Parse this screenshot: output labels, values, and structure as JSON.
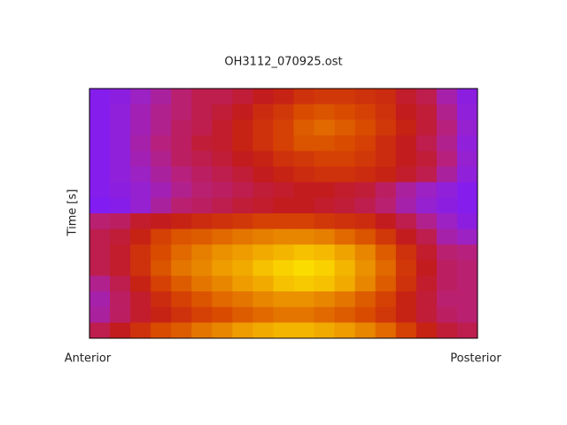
{
  "chart_data": {
    "type": "heatmap",
    "title": "OH3112_070925.ost",
    "ylabel": "Time [s]",
    "xlabels": [
      "Anterior",
      "Posterior"
    ],
    "zlim": [
      0,
      100
    ],
    "colormap": [
      "#7a1aff",
      "#9a22c8",
      "#b8207a",
      "#c41c18",
      "#d84800",
      "#e88400",
      "#f4b800",
      "#fff000"
    ],
    "z": [
      [
        5,
        8,
        15,
        22,
        30,
        35,
        35,
        38,
        42,
        45,
        50,
        52,
        52,
        50,
        48,
        40,
        35,
        20,
        8
      ],
      [
        5,
        10,
        18,
        25,
        30,
        35,
        38,
        42,
        48,
        52,
        58,
        60,
        58,
        55,
        50,
        42,
        38,
        25,
        10
      ],
      [
        5,
        10,
        18,
        25,
        32,
        35,
        40,
        45,
        50,
        55,
        62,
        65,
        62,
        58,
        52,
        45,
        38,
        28,
        12
      ],
      [
        5,
        10,
        20,
        28,
        32,
        38,
        40,
        45,
        50,
        55,
        60,
        60,
        58,
        55,
        48,
        42,
        35,
        25,
        10
      ],
      [
        5,
        10,
        18,
        25,
        32,
        35,
        38,
        42,
        45,
        50,
        52,
        55,
        55,
        52,
        48,
        42,
        38,
        28,
        12
      ],
      [
        5,
        10,
        15,
        22,
        28,
        32,
        35,
        38,
        42,
        45,
        48,
        50,
        50,
        48,
        45,
        40,
        35,
        22,
        10
      ],
      [
        5,
        8,
        12,
        18,
        25,
        30,
        32,
        35,
        38,
        40,
        42,
        42,
        40,
        38,
        32,
        22,
        15,
        10,
        5
      ],
      [
        3,
        6,
        12,
        22,
        30,
        32,
        35,
        38,
        40,
        42,
        42,
        40,
        38,
        35,
        30,
        20,
        12,
        8,
        5
      ],
      [
        30,
        32,
        40,
        42,
        45,
        48,
        50,
        52,
        55,
        55,
        55,
        52,
        50,
        48,
        42,
        35,
        25,
        15,
        8
      ],
      [
        35,
        38,
        45,
        55,
        60,
        62,
        65,
        68,
        70,
        72,
        72,
        70,
        65,
        60,
        52,
        42,
        35,
        20,
        15
      ],
      [
        35,
        40,
        50,
        58,
        65,
        70,
        75,
        78,
        82,
        85,
        88,
        86,
        80,
        72,
        62,
        50,
        40,
        30,
        28
      ],
      [
        35,
        40,
        50,
        60,
        68,
        72,
        78,
        82,
        88,
        92,
        95,
        92,
        85,
        75,
        65,
        52,
        42,
        32,
        30
      ],
      [
        25,
        35,
        45,
        55,
        62,
        68,
        72,
        78,
        82,
        88,
        90,
        88,
        82,
        72,
        62,
        50,
        40,
        32,
        30
      ],
      [
        20,
        32,
        40,
        48,
        55,
        60,
        65,
        68,
        72,
        75,
        75,
        72,
        68,
        62,
        55,
        45,
        38,
        30,
        30
      ],
      [
        22,
        32,
        40,
        45,
        50,
        55,
        58,
        62,
        65,
        68,
        68,
        65,
        62,
        58,
        52,
        45,
        38,
        32,
        30
      ],
      [
        35,
        42,
        50,
        58,
        62,
        68,
        72,
        78,
        82,
        85,
        85,
        82,
        78,
        72,
        65,
        55,
        45,
        38,
        35
      ]
    ]
  }
}
